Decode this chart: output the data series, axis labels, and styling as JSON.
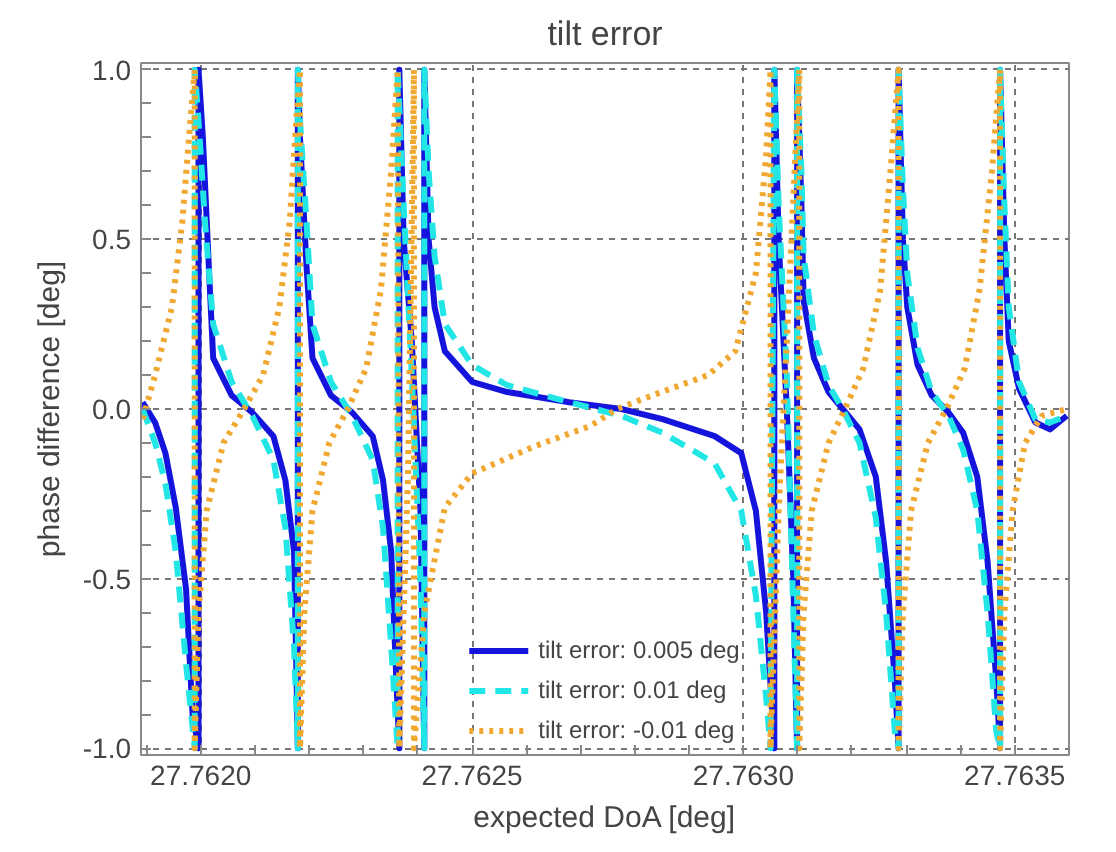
{
  "chart_data": {
    "type": "line",
    "title": "tilt error",
    "xlabel": "expected DoA [deg]",
    "ylabel": "phase difference [deg]",
    "xlim": [
      27.76189,
      27.7636
    ],
    "ylim": [
      -1.02,
      1.02
    ],
    "xticks": [
      {
        "value": 27.762,
        "label": "27.7620"
      },
      {
        "value": 27.7625,
        "label": "27.7625"
      },
      {
        "value": 27.763,
        "label": "27.7630"
      },
      {
        "value": 27.7635,
        "label": "27.7635"
      }
    ],
    "yticks": [
      {
        "value": -1,
        "label": "-1.0"
      },
      {
        "value": -0.5,
        "label": "-0.5"
      },
      {
        "value": 0,
        "label": "0.0"
      },
      {
        "value": 0.5,
        "label": "0.5"
      },
      {
        "value": 1,
        "label": "1.0"
      }
    ],
    "grid": true,
    "legend": "bottom",
    "marker": "none",
    "series": [
      {
        "name": "tilt error: 0.005 deg",
        "color": "#1414dc",
        "line_style": "solid",
        "x": [
          27.761893,
          27.761916,
          27.761935,
          27.761954,
          27.761973,
          27.761985,
          27.761996,
          27.761996,
          27.762004,
          27.762015,
          27.762023,
          27.762057,
          27.762095,
          27.762134,
          27.762156,
          27.762172,
          27.762176,
          27.762179,
          27.762179,
          27.762183,
          27.762195,
          27.762206,
          27.76224,
          27.762279,
          27.762317,
          27.762336,
          27.762351,
          27.762359,
          27.762366,
          27.762366,
          27.762374,
          27.762389,
          27.762405,
          27.762412,
          27.762412,
          27.76242,
          27.762431,
          27.76245,
          27.7625,
          27.762565,
          27.762679,
          27.762775,
          27.762851,
          27.762947,
          27.762996,
          27.763023,
          27.763042,
          27.763057,
          27.763057,
          27.763065,
          27.76308,
          27.763092,
          27.763099,
          27.763099,
          27.763107,
          27.763111,
          27.76313,
          27.763157,
          27.763183,
          27.763214,
          27.763244,
          27.763263,
          27.763279,
          27.763286,
          27.763286,
          27.763294,
          27.763302,
          27.763321,
          27.763347,
          27.763378,
          27.763405,
          27.763431,
          27.76345,
          27.763466,
          27.763473,
          27.763473,
          27.763481,
          27.763489,
          27.763508,
          27.763538,
          27.763565,
          27.763596
        ],
        "values": [
          0.02,
          -0.04,
          -0.13,
          -0.29,
          -0.53,
          -0.9,
          -1,
          1,
          0.8,
          0.42,
          0.15,
          0.04,
          -0.01,
          -0.08,
          -0.21,
          -0.42,
          -0.74,
          -1,
          1,
          0.8,
          0.42,
          0.15,
          0.04,
          -0.01,
          -0.08,
          -0.21,
          -0.42,
          -0.74,
          -1,
          1,
          0.5,
          0.2,
          -0.3,
          -1,
          1,
          0.5,
          0.3,
          0.17,
          0.08,
          0.05,
          0.02,
          0.0,
          -0.03,
          -0.08,
          -0.13,
          -0.3,
          -0.6,
          -1,
          1,
          0.5,
          0.0,
          -0.5,
          -1,
          1,
          0.6,
          0.32,
          0.15,
          0.05,
          0.0,
          -0.06,
          -0.2,
          -0.45,
          -0.8,
          -1,
          1,
          0.5,
          0.3,
          0.13,
          0.04,
          -0.01,
          -0.07,
          -0.2,
          -0.45,
          -0.8,
          -1,
          1,
          0.5,
          0.2,
          0.06,
          -0.04,
          -0.06,
          -0.02
        ]
      },
      {
        "name": "tilt error: 0.01 deg",
        "color": "#22e6e6",
        "line_style": "dashed",
        "x": [
          27.761893,
          27.761916,
          27.761935,
          27.761954,
          27.761973,
          27.761989,
          27.761989,
          27.761996,
          27.762008,
          27.762023,
          27.762057,
          27.762095,
          27.762134,
          27.762156,
          27.762172,
          27.762179,
          27.762179,
          27.762183,
          27.762195,
          27.762206,
          27.76224,
          27.762279,
          27.762317,
          27.762336,
          27.762351,
          27.762363,
          27.762363,
          27.762374,
          27.762389,
          27.762405,
          27.762412,
          27.762412,
          27.76242,
          27.762431,
          27.76245,
          27.7625,
          27.762565,
          27.762679,
          27.762775,
          27.762851,
          27.762947,
          27.762996,
          27.763023,
          27.763042,
          27.76305,
          27.763057,
          27.763065,
          27.76308,
          27.763092,
          27.763099,
          27.763099,
          27.763107,
          27.763111,
          27.76313,
          27.763157,
          27.763183,
          27.763214,
          27.763244,
          27.763263,
          27.763279,
          27.763286,
          27.763286,
          27.763294,
          27.763302,
          27.763321,
          27.763347,
          27.763378,
          27.763405,
          27.763431,
          27.76345,
          27.763466,
          27.763473,
          27.763473,
          27.763481,
          27.763489,
          27.763508,
          27.763538,
          27.763565,
          27.763596
        ],
        "values": [
          0.0,
          -0.1,
          -0.22,
          -0.42,
          -0.75,
          -1,
          1,
          0.85,
          0.55,
          0.25,
          0.08,
          -0.02,
          -0.15,
          -0.35,
          -0.7,
          -1,
          1,
          0.85,
          0.55,
          0.25,
          0.08,
          -0.02,
          -0.15,
          -0.35,
          -0.7,
          -1,
          1,
          0.6,
          0.1,
          -0.5,
          -1,
          1,
          0.7,
          0.45,
          0.25,
          0.13,
          0.07,
          0.02,
          -0.02,
          -0.07,
          -0.16,
          -0.3,
          -0.55,
          -0.85,
          -1,
          1,
          0.6,
          0.1,
          -0.6,
          -1,
          1,
          0.7,
          0.45,
          0.22,
          0.07,
          0.0,
          -0.1,
          -0.32,
          -0.6,
          -0.95,
          -1,
          1,
          0.65,
          0.4,
          0.18,
          0.05,
          -0.02,
          -0.12,
          -0.3,
          -0.6,
          -0.95,
          -1,
          1,
          0.6,
          0.3,
          0.08,
          -0.03,
          -0.04,
          -0.02
        ]
      },
      {
        "name": "tilt error: -0.01 deg",
        "color": "#f0a830",
        "line_style": "dotted",
        "x": [
          27.761893,
          27.761916,
          27.761947,
          27.761966,
          27.761981,
          27.761989,
          27.761989,
          27.761996,
          27.762011,
          27.762042,
          27.76208,
          27.762115,
          27.762145,
          27.762164,
          27.762176,
          27.762183,
          27.762183,
          27.762191,
          27.762206,
          27.762237,
          27.762271,
          27.762305,
          27.762332,
          27.762351,
          27.762363,
          27.762366,
          27.762382,
          27.762393,
          27.762393,
          27.762412,
          27.76245,
          27.7625,
          27.762615,
          27.762718,
          27.762767,
          27.762832,
          27.762935,
          27.762985,
          27.763023,
          27.763042,
          27.76305,
          27.76305,
          27.763065,
          27.76308,
          27.763103,
          27.763103,
          27.763111,
          27.763126,
          27.763157,
          27.763187,
          27.763221,
          27.763252,
          27.763271,
          27.763286,
          27.763286,
          27.763294,
          27.763309,
          27.76334,
          27.763374,
          27.763408,
          27.763435,
          27.763458,
          27.763473,
          27.763473,
          27.763481,
          27.763496,
          27.763519,
          27.76355,
          27.763596
        ],
        "values": [
          -0.03,
          0.1,
          0.3,
          0.55,
          0.85,
          1,
          -1,
          -0.6,
          -0.3,
          -0.1,
          0.0,
          0.1,
          0.3,
          0.55,
          0.85,
          1,
          -1,
          -0.6,
          -0.3,
          -0.1,
          0.0,
          0.12,
          0.35,
          0.7,
          1,
          -1,
          -0.2,
          1,
          -1,
          -0.6,
          -0.29,
          -0.19,
          -0.11,
          -0.05,
          0.0,
          0.04,
          0.1,
          0.17,
          0.4,
          0.75,
          1,
          -1,
          -0.3,
          0.2,
          1,
          -1,
          -0.6,
          -0.3,
          -0.1,
          0.0,
          0.12,
          0.35,
          0.7,
          1,
          -1,
          -0.6,
          -0.3,
          -0.1,
          0.0,
          0.12,
          0.35,
          0.7,
          1,
          -1,
          -0.6,
          -0.3,
          -0.1,
          -0.02,
          0.0
        ]
      }
    ]
  }
}
